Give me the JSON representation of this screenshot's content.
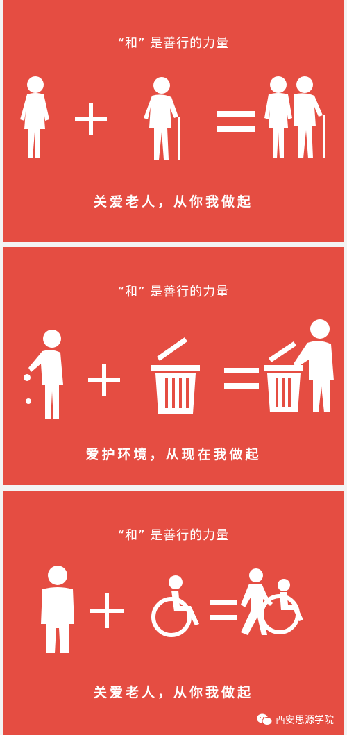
{
  "panels": [
    {
      "title": "“和” 是善行的力量",
      "slogan": "关爱老人，从你我做起"
    },
    {
      "title": "“和” 是善行的力量",
      "slogan": "爱护环境，从现在我做起"
    },
    {
      "title": "“和” 是善行的力量",
      "slogan": "关爱老人，从你我做起"
    }
  ],
  "watermark": {
    "text": "西安思源学院"
  },
  "colors": {
    "panel": "#e54d42",
    "figure": "#ffffff",
    "background": "#f3f3f3"
  },
  "icons": [
    "elderly-woman-icon",
    "elderly-man-cane-icon",
    "elderly-couple-icon",
    "person-littering-icon",
    "trash-bin-icon",
    "person-using-bin-icon",
    "person-icon",
    "wheelchair-icon",
    "person-pushing-wheelchair-icon",
    "wechat-icon"
  ]
}
